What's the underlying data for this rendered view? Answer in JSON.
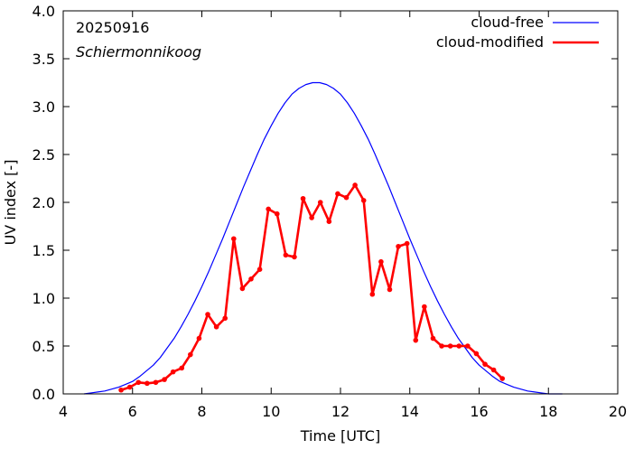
{
  "chart_data": {
    "type": "line",
    "annotations": {
      "date": "20250916",
      "station": "Schiermonnikoog"
    },
    "xlabel": "Time  [UTC]",
    "ylabel": "UV index  [-]",
    "xlim": [
      4,
      20
    ],
    "ylim": [
      0,
      4.0
    ],
    "x_ticks": [
      4,
      6,
      8,
      10,
      12,
      14,
      16,
      18,
      20
    ],
    "x_tick_labels": [
      "4",
      "6",
      "8",
      "10",
      "12",
      "14",
      "16",
      "18",
      "20"
    ],
    "y_ticks": [
      0,
      0.5,
      1.0,
      1.5,
      2.0,
      2.5,
      3.0,
      3.5,
      4.0
    ],
    "y_tick_labels": [
      "0.0",
      "0.5",
      "1.0",
      "1.5",
      "2.0",
      "2.5",
      "3.0",
      "3.5",
      "4.0"
    ],
    "grid": false,
    "legend_position": "top-right",
    "series": [
      {
        "name": "cloud-free",
        "color": "#0000ff",
        "markers": false,
        "x": [
          4.6,
          4.8,
          5.0,
          5.2,
          5.4,
          5.6,
          5.8,
          6.0,
          6.2,
          6.4,
          6.6,
          6.8,
          7.0,
          7.2,
          7.4,
          7.6,
          7.8,
          8.0,
          8.2,
          8.4,
          8.6,
          8.8,
          9.0,
          9.2,
          9.4,
          9.6,
          9.8,
          10.0,
          10.2,
          10.4,
          10.6,
          10.8,
          11.0,
          11.2,
          11.4,
          11.6,
          11.8,
          12.0,
          12.2,
          12.4,
          12.6,
          12.8,
          13.0,
          13.2,
          13.4,
          13.6,
          13.8,
          14.0,
          14.2,
          14.4,
          14.6,
          14.8,
          15.0,
          15.2,
          15.4,
          15.6,
          15.8,
          16.0,
          16.2,
          16.4,
          16.6,
          16.8,
          17.0,
          17.2,
          17.4,
          17.6,
          17.8,
          18.0,
          18.2,
          18.4
        ],
        "y": [
          0.0,
          0.01,
          0.02,
          0.03,
          0.05,
          0.07,
          0.1,
          0.13,
          0.18,
          0.24,
          0.3,
          0.38,
          0.48,
          0.58,
          0.7,
          0.83,
          0.97,
          1.12,
          1.28,
          1.45,
          1.62,
          1.8,
          1.98,
          2.16,
          2.33,
          2.5,
          2.66,
          2.8,
          2.93,
          3.04,
          3.13,
          3.19,
          3.23,
          3.25,
          3.25,
          3.23,
          3.19,
          3.13,
          3.04,
          2.93,
          2.8,
          2.66,
          2.5,
          2.33,
          2.16,
          1.98,
          1.8,
          1.62,
          1.45,
          1.28,
          1.12,
          0.97,
          0.83,
          0.7,
          0.58,
          0.48,
          0.38,
          0.3,
          0.24,
          0.18,
          0.13,
          0.1,
          0.07,
          0.05,
          0.03,
          0.02,
          0.01,
          0.0,
          0.0,
          0.0
        ]
      },
      {
        "name": "cloud-modified",
        "color": "#ff0000",
        "markers": true,
        "x": [
          5.67,
          5.92,
          6.17,
          6.42,
          6.67,
          6.92,
          7.17,
          7.42,
          7.67,
          7.92,
          8.17,
          8.42,
          8.67,
          8.92,
          9.17,
          9.42,
          9.67,
          9.92,
          10.17,
          10.42,
          10.67,
          10.92,
          11.17,
          11.42,
          11.67,
          11.92,
          12.17,
          12.42,
          12.67,
          12.92,
          13.17,
          13.42,
          13.67,
          13.92,
          14.17,
          14.42,
          14.67,
          14.92,
          15.17,
          15.42,
          15.67,
          15.92,
          16.17,
          16.42,
          16.67
        ],
        "y": [
          0.04,
          0.07,
          0.12,
          0.11,
          0.12,
          0.15,
          0.23,
          0.27,
          0.41,
          0.58,
          0.83,
          0.7,
          0.79,
          1.62,
          1.1,
          1.2,
          1.3,
          1.93,
          1.88,
          1.45,
          1.43,
          2.04,
          1.84,
          2.0,
          1.8,
          2.09,
          2.05,
          2.18,
          2.02,
          1.04,
          1.38,
          1.09,
          1.54,
          1.57,
          0.56,
          0.91,
          0.58,
          0.5,
          0.5,
          0.5,
          0.5,
          0.42,
          0.31,
          0.25,
          0.16
        ]
      }
    ]
  }
}
